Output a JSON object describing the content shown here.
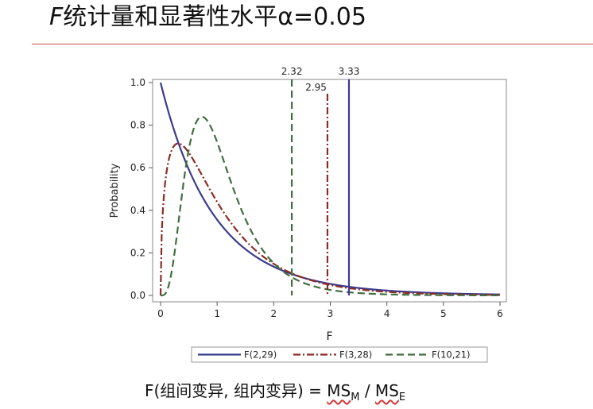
{
  "slide": {
    "title_var": "F",
    "title_rest": "统计量和显著性水平α=0.05",
    "formula": {
      "lhs": "F(组间变异, 组内变异) = ",
      "ms": "MS",
      "sub_m": "M",
      "slash": " / ",
      "sub_e": "E"
    }
  },
  "colors": {
    "blue": "#3b3b8f",
    "red": "#8b2d25",
    "green": "#3f6f3f",
    "rule": "#c0504d"
  },
  "chart_data": {
    "type": "line",
    "xlabel": "F",
    "ylabel": "Probability",
    "xlim": [
      0,
      6
    ],
    "ylim": [
      0,
      1
    ],
    "xticks": [
      "0",
      "1",
      "2",
      "3",
      "4",
      "5",
      "6"
    ],
    "yticks": [
      "0.0",
      "0.2",
      "0.4",
      "0.6",
      "0.8",
      "1.0"
    ],
    "grid": false,
    "legend_position": "bottom",
    "series": [
      {
        "name": "F(2,29)",
        "df1": 2,
        "df2": 29,
        "color": "#3b3b8f",
        "dash": "solid"
      },
      {
        "name": "F(3,28)",
        "df1": 3,
        "df2": 28,
        "color": "#8b2d25",
        "dash": "dashdot"
      },
      {
        "name": "F(10,21)",
        "df1": 10,
        "df2": 21,
        "color": "#3f6f3f",
        "dash": "dash"
      }
    ],
    "critical_values": [
      {
        "label": "2.32",
        "x": 2.32,
        "color": "#3f6f3f",
        "dash": "dash"
      },
      {
        "label": "2.95",
        "x": 2.95,
        "color": "#8b2d25",
        "dash": "dashdot"
      },
      {
        "label": "3.33",
        "x": 3.33,
        "color": "#3b3b8f",
        "dash": "solid"
      }
    ]
  }
}
